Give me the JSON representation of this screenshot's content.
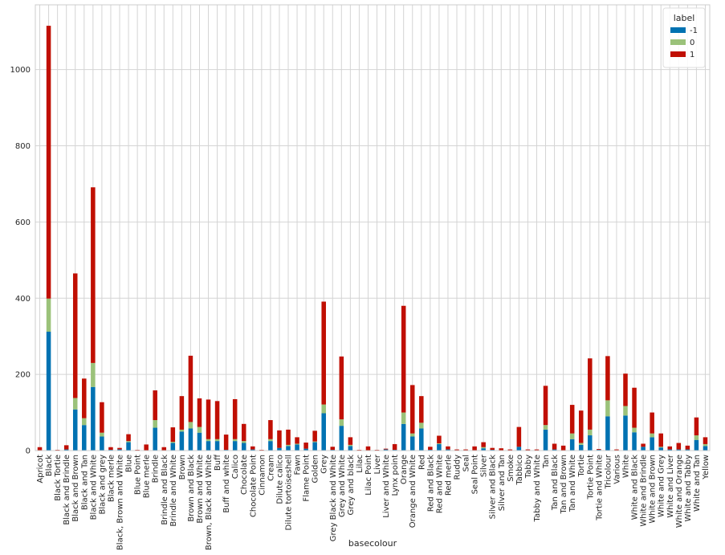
{
  "chart_data": {
    "type": "bar",
    "stacked": true,
    "xlabel": "basecolour",
    "ylabel": "",
    "ylim": [
      0,
      1170
    ],
    "yticks": [
      0,
      200,
      400,
      600,
      800,
      1000
    ],
    "grid": true,
    "legend": {
      "title": "label",
      "placement": "top-right"
    },
    "categories": [
      "Apricot",
      "Black",
      "Black Tortie",
      "Black and Brindle",
      "Black and Brown",
      "Black and Tan",
      "Black and White",
      "Black and grey",
      "Black merle",
      "Black, Brown and White",
      "Blue",
      "Blue Point",
      "Blue merle",
      "Brindle",
      "Brindle and Black",
      "Brindle and White",
      "Brown",
      "Brown and Black",
      "Brown and White",
      "Brown, Black and White",
      "Buff",
      "Buff and white",
      "Calico",
      "Chocolate",
      "Chocolate Point",
      "Cinnamon",
      "Cream",
      "Dilute calico",
      "Dilute tortoiseshell",
      "Fawn",
      "Flame Point",
      "Golden",
      "Grey",
      "Grey Black and White",
      "Grey and White",
      "Grey and black",
      "Lilac",
      "Lilac Point",
      "Liver",
      "Liver and White",
      "Lynx point",
      "Orange",
      "Orange and White",
      "Red",
      "Red and Black",
      "Red and White",
      "Red merle",
      "Ruddy",
      "Seal",
      "Seal Point",
      "Silver",
      "Silver and Black",
      "Silver and Tan",
      "Smoke",
      "Tabbico",
      "Tabby",
      "Tabby and White",
      "Tan",
      "Tan and Black",
      "Tan and Brown",
      "Tan and White",
      "Tortie",
      "Tortie Point",
      "Tortie and White",
      "Tricolour",
      "Various",
      "White",
      "White and Black",
      "White and Brindle",
      "White and Brown",
      "White and Grey",
      "White and Liver",
      "White and Orange",
      "White and Tabby",
      "White and Tan",
      "Yellow"
    ],
    "series": [
      {
        "name": "-1",
        "color": "#0072b2",
        "values": [
          1,
          312,
          0,
          3,
          108,
          67,
          167,
          37,
          2,
          3,
          22,
          1,
          1,
          60,
          1,
          20,
          50,
          58,
          47,
          25,
          25,
          2,
          25,
          20,
          3,
          1,
          25,
          7,
          12,
          16,
          5,
          22,
          98,
          2,
          65,
          12,
          1,
          1,
          1,
          3,
          2,
          70,
          37,
          58,
          2,
          17,
          3,
          1,
          1,
          1,
          6,
          2,
          1,
          1,
          10,
          1,
          1,
          55,
          3,
          1,
          30,
          15,
          40,
          2,
          90,
          1,
          92,
          48,
          10,
          35,
          8,
          3,
          3,
          3,
          28,
          12
        ]
      },
      {
        "name": "0",
        "color": "#9bc27a",
        "values": [
          0,
          87,
          0,
          0,
          30,
          18,
          63,
          10,
          0,
          0,
          3,
          0,
          0,
          20,
          0,
          3,
          5,
          17,
          15,
          5,
          5,
          0,
          5,
          5,
          0,
          0,
          5,
          0,
          3,
          2,
          0,
          2,
          23,
          0,
          17,
          3,
          0,
          0,
          0,
          0,
          0,
          30,
          8,
          15,
          0,
          2,
          0,
          0,
          0,
          0,
          3,
          0,
          0,
          0,
          0,
          0,
          0,
          12,
          0,
          0,
          15,
          5,
          15,
          0,
          42,
          0,
          25,
          12,
          0,
          10,
          2,
          0,
          0,
          0,
          12,
          5
        ]
      },
      {
        "name": "1",
        "color": "#c00f03",
        "values": [
          8,
          716,
          2,
          11,
          327,
          104,
          461,
          80,
          7,
          4,
          18,
          1,
          15,
          78,
          8,
          38,
          88,
          174,
          75,
          104,
          100,
          40,
          105,
          45,
          8,
          1,
          50,
          46,
          40,
          17,
          16,
          28,
          270,
          8,
          165,
          20,
          1,
          10,
          1,
          2,
          15,
          280,
          127,
          70,
          8,
          20,
          8,
          2,
          2,
          10,
          13,
          5,
          5,
          2,
          52,
          2,
          2,
          103,
          15,
          12,
          75,
          85,
          187,
          2,
          116,
          2,
          85,
          105,
          8,
          55,
          35,
          8,
          17,
          10,
          47,
          18
        ]
      }
    ]
  }
}
